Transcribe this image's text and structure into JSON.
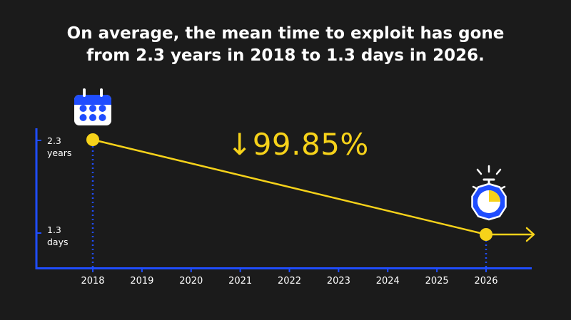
{
  "headline": {
    "line1": "On average, the mean time to exploit has gone",
    "line2": "from 2.3 years in 2018 to 1.3 days in 2026."
  },
  "change_label": "↓99.85%",
  "colors": {
    "background": "#1b1b1b",
    "axis": "#1f4dff",
    "line": "#f6d21a",
    "text": "#ffffff"
  },
  "icons": {
    "start": "calendar-icon",
    "end": "stopwatch-icon"
  },
  "chart_data": {
    "type": "line",
    "categories": [
      "2018",
      "2019",
      "2020",
      "2021",
      "2022",
      "2023",
      "2024",
      "2025",
      "2026"
    ],
    "y_tick_labels": [
      {
        "line1": "2.3",
        "line2": "years"
      },
      {
        "line1": "1.3",
        "line2": "days"
      }
    ],
    "series": [
      {
        "points": [
          {
            "x": "2018",
            "y": "2.3 years"
          },
          {
            "x": "2026",
            "y": "1.3 days"
          }
        ]
      }
    ],
    "annotation": "↓99.85%",
    "grid": false
  }
}
